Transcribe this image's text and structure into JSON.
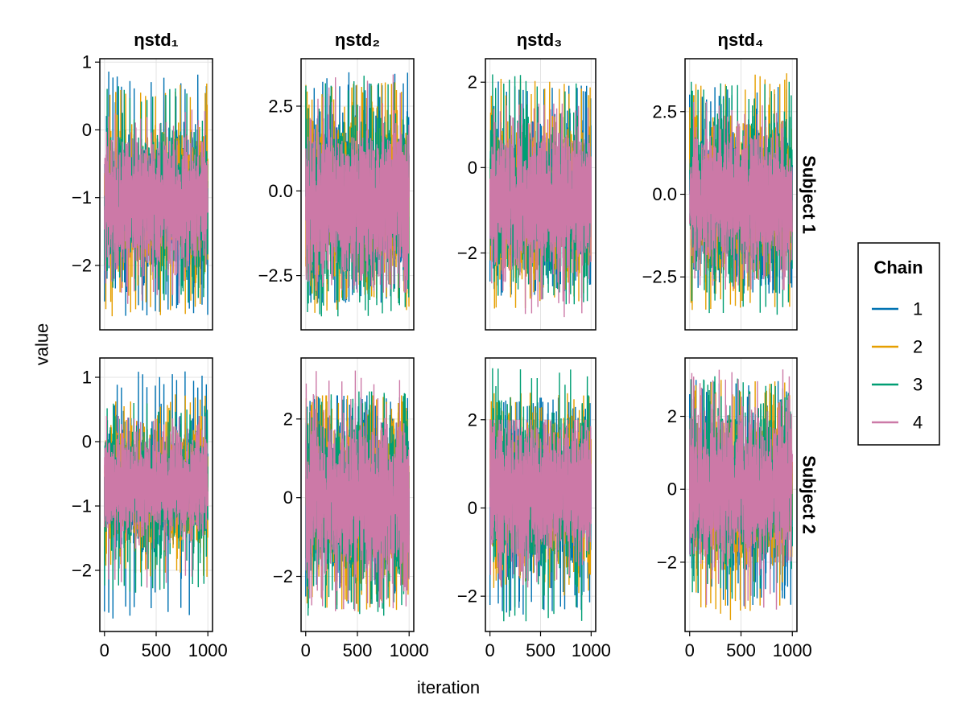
{
  "chart_data": {
    "type": "line",
    "xlabel": "iteration",
    "ylabel": "value",
    "column_titles": [
      "ηstd₁",
      "ηstd₂",
      "ηstd₃",
      "ηstd₄"
    ],
    "row_labels": [
      "Subject 1",
      "Subject 2"
    ],
    "legend": {
      "title": "Chain",
      "entries": [
        "1",
        "2",
        "3",
        "4"
      ],
      "placement": "right"
    },
    "colors": {
      "1": "#0072b2",
      "2": "#e69f00",
      "3": "#009e73",
      "4": "#cc79a7"
    },
    "grid": true,
    "x_range": [
      0,
      1000
    ],
    "x_ticks": [
      0,
      500,
      1000
    ],
    "x_tick_labels": [
      "0",
      "500",
      "1000"
    ],
    "iterations_per_chain": 1000,
    "panels": [
      {
        "row": 0,
        "col": 0,
        "ylim": [
          -2.95,
          1.05
        ],
        "y_ticks": [
          1,
          0,
          -1,
          -2
        ],
        "y_tick_labels": [
          "1",
          "0",
          "−1",
          "−2"
        ],
        "series": [
          {
            "chain": "1",
            "mean": -1.1,
            "sd": 0.5,
            "min": -2.75,
            "max": 0.9
          },
          {
            "chain": "2",
            "mean": -1.05,
            "sd": 0.5,
            "min": -2.75,
            "max": 0.7
          },
          {
            "chain": "3",
            "mean": -1.05,
            "sd": 0.5,
            "min": -2.55,
            "max": 0.65
          },
          {
            "chain": "4",
            "mean": -1.1,
            "sd": 0.45,
            "min": -2.6,
            "max": 0.3
          }
        ]
      },
      {
        "row": 0,
        "col": 1,
        "ylim": [
          -4.1,
          3.9
        ],
        "y_ticks": [
          2.5,
          0,
          -2.5
        ],
        "y_tick_labels": [
          "2.5",
          "0.0",
          "−2.5"
        ],
        "series": [
          {
            "chain": "1",
            "mean": -0.3,
            "sd": 1.2,
            "min": -3.3,
            "max": 3.5
          },
          {
            "chain": "2",
            "mean": -0.3,
            "sd": 1.2,
            "min": -3.6,
            "max": 3.2
          },
          {
            "chain": "3",
            "mean": -0.3,
            "sd": 1.2,
            "min": -3.7,
            "max": 3.4
          },
          {
            "chain": "4",
            "mean": -0.3,
            "sd": 1.1,
            "min": -3.0,
            "max": 3.5
          }
        ]
      },
      {
        "row": 0,
        "col": 2,
        "ylim": [
          -3.8,
          2.55
        ],
        "y_ticks": [
          2,
          0,
          -2
        ],
        "y_tick_labels": [
          "2",
          "0",
          "−2"
        ],
        "series": [
          {
            "chain": "1",
            "mean": -0.8,
            "sd": 0.85,
            "min": -3.0,
            "max": 2.1
          },
          {
            "chain": "2",
            "mean": -0.8,
            "sd": 0.85,
            "min": -3.3,
            "max": 2.1
          },
          {
            "chain": "3",
            "mean": -0.8,
            "sd": 0.85,
            "min": -3.2,
            "max": 2.2
          },
          {
            "chain": "4",
            "mean": -0.8,
            "sd": 0.8,
            "min": -3.5,
            "max": 1.5
          }
        ]
      },
      {
        "row": 0,
        "col": 3,
        "ylim": [
          -4.1,
          4.1
        ],
        "y_ticks": [
          2.5,
          0,
          -2.5
        ],
        "y_tick_labels": [
          "2.5",
          "0.0",
          "−2.5"
        ],
        "series": [
          {
            "chain": "1",
            "mean": -0.1,
            "sd": 1.1,
            "min": -3.0,
            "max": 3.3
          },
          {
            "chain": "2",
            "mean": -0.1,
            "sd": 1.1,
            "min": -3.5,
            "max": 3.7
          },
          {
            "chain": "3",
            "mean": -0.1,
            "sd": 1.1,
            "min": -3.7,
            "max": 3.4
          },
          {
            "chain": "4",
            "mean": -0.1,
            "sd": 1.0,
            "min": -2.9,
            "max": 2.8
          }
        ]
      },
      {
        "row": 1,
        "col": 0,
        "ylim": [
          -2.95,
          1.3
        ],
        "y_ticks": [
          1,
          0,
          -1,
          -2
        ],
        "y_tick_labels": [
          "1",
          "0",
          "−1",
          "−2"
        ],
        "series": [
          {
            "chain": "1",
            "mean": -0.7,
            "sd": 0.45,
            "min": -2.75,
            "max": 1.1
          },
          {
            "chain": "2",
            "mean": -0.7,
            "sd": 0.45,
            "min": -2.1,
            "max": 0.75
          },
          {
            "chain": "3",
            "mean": -0.7,
            "sd": 0.45,
            "min": -2.4,
            "max": 0.6
          },
          {
            "chain": "4",
            "mean": -0.7,
            "sd": 0.4,
            "min": -2.3,
            "max": 0.4
          }
        ]
      },
      {
        "row": 1,
        "col": 1,
        "ylim": [
          -3.4,
          3.55
        ],
        "y_ticks": [
          2,
          0,
          -2
        ],
        "y_tick_labels": [
          "2",
          "0",
          "−2"
        ],
        "series": [
          {
            "chain": "1",
            "mean": 0.0,
            "sd": 1.0,
            "min": -2.7,
            "max": 2.6
          },
          {
            "chain": "2",
            "mean": 0.0,
            "sd": 1.0,
            "min": -2.9,
            "max": 2.6
          },
          {
            "chain": "3",
            "mean": 0.0,
            "sd": 1.0,
            "min": -3.0,
            "max": 2.7
          },
          {
            "chain": "4",
            "mean": 0.0,
            "sd": 0.95,
            "min": -2.9,
            "max": 3.3
          }
        ]
      },
      {
        "row": 1,
        "col": 2,
        "ylim": [
          -2.8,
          3.4
        ],
        "y_ticks": [
          2,
          0,
          -2
        ],
        "y_tick_labels": [
          "2",
          "0",
          "−2"
        ],
        "series": [
          {
            "chain": "1",
            "mean": 0.4,
            "sd": 0.8,
            "min": -2.5,
            "max": 2.5
          },
          {
            "chain": "2",
            "mean": 0.4,
            "sd": 0.8,
            "min": -2.0,
            "max": 2.6
          },
          {
            "chain": "3",
            "mean": 0.4,
            "sd": 0.8,
            "min": -2.6,
            "max": 3.2
          },
          {
            "chain": "4",
            "mean": 0.4,
            "sd": 0.75,
            "min": -1.8,
            "max": 2.0
          }
        ]
      },
      {
        "row": 1,
        "col": 3,
        "ylim": [
          -3.9,
          3.6
        ],
        "y_ticks": [
          2,
          0,
          -2
        ],
        "y_tick_labels": [
          "2",
          "0",
          "−2"
        ],
        "series": [
          {
            "chain": "1",
            "mean": 0.0,
            "sd": 1.0,
            "min": -3.2,
            "max": 3.0
          },
          {
            "chain": "2",
            "mean": 0.0,
            "sd": 1.0,
            "min": -3.6,
            "max": 3.0
          },
          {
            "chain": "3",
            "mean": 0.0,
            "sd": 1.0,
            "min": -3.0,
            "max": 3.1
          },
          {
            "chain": "4",
            "mean": 0.0,
            "sd": 0.95,
            "min": -3.3,
            "max": 3.3
          }
        ]
      }
    ]
  }
}
